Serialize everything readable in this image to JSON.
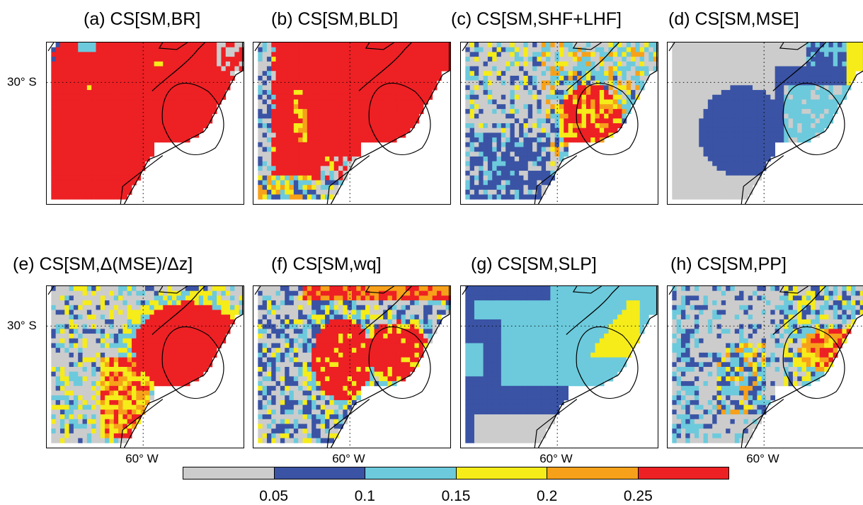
{
  "panels": [
    {
      "id": "a",
      "title": "(a) CS[SM,BR]",
      "lat_label": "30° S",
      "lon_label": "",
      "pattern": "BR"
    },
    {
      "id": "b",
      "title": "(b) CS[SM,BLD]",
      "lat_label": "",
      "lon_label": "",
      "pattern": "BLD"
    },
    {
      "id": "c",
      "title": "(c) CS[SM,SHF+LHF]",
      "lat_label": "",
      "lon_label": "",
      "pattern": "SHF"
    },
    {
      "id": "d",
      "title": "(d) CS[SM,MSE]",
      "lat_label": "",
      "lon_label": "",
      "pattern": "MSE"
    },
    {
      "id": "e",
      "title": "(e) CS[SM,Δ(MSE)/Δz]",
      "lat_label": "30° S",
      "lon_label": "60° W",
      "pattern": "DMSE"
    },
    {
      "id": "f",
      "title": "(f) CS[SM,wq]",
      "lat_label": "",
      "lon_label": "60° W",
      "pattern": "WQ"
    },
    {
      "id": "g",
      "title": "(g) CS[SM,SLP]",
      "lat_label": "",
      "lon_label": "60° W",
      "pattern": "SLP"
    },
    {
      "id": "h",
      "title": "(h) CS[SM,PP]",
      "lat_label": "",
      "lon_label": "60° W",
      "pattern": "PP"
    }
  ],
  "colorbar": {
    "colors": [
      "#cccccc",
      "#3a53a4",
      "#6ccadc",
      "#f5ec1a",
      "#f7a11a",
      "#ed2024"
    ],
    "ticks": [
      "0.05",
      "0.1",
      "0.15",
      "0.2",
      "0.25"
    ]
  }
}
